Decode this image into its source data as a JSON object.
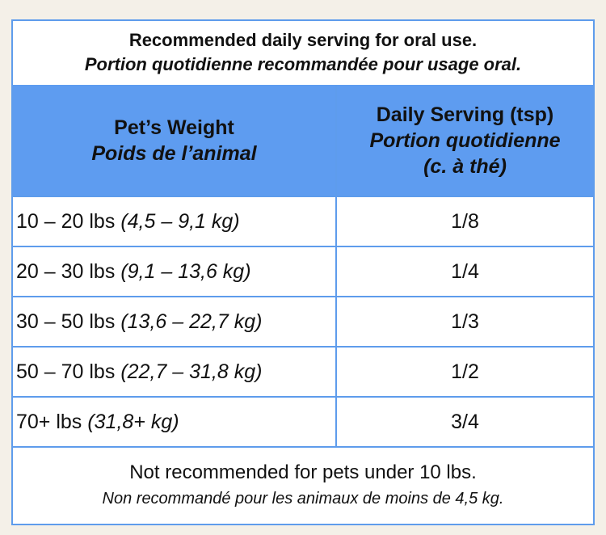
{
  "title": [
    "Recommended daily serving for oral use.",
    "Portion quotidienne recommandée pour usage oral."
  ],
  "table": {
    "columns": [
      [
        "Pet’s Weight",
        "Poids de l’animal"
      ],
      [
        "Daily Serving (tsp)",
        "Portion quotidienne",
        "(c. à thé)"
      ]
    ],
    "rows": [
      [
        {
          "lbs": "10 – 20 lbs",
          "kg": "(4,5 – 9,1 kg)"
        },
        "1/8"
      ],
      [
        {
          "lbs": "20 – 30 lbs",
          "kg": "(9,1 – 13,6 kg)"
        },
        "1/4"
      ],
      [
        {
          "lbs": "30 – 50 lbs",
          "kg": "(13,6 – 22,7 kg)"
        },
        "1/3"
      ],
      [
        {
          "lbs": "50 – 70 lbs",
          "kg": "(22,7 – 31,8 kg)"
        },
        "1/2"
      ],
      [
        {
          "lbs": "70+ lbs",
          "kg": "(31,8+ kg)"
        },
        "3/4"
      ]
    ]
  },
  "footer": [
    "Not recommended for pets under 10 lbs.",
    "Non recommandé pour les animaux de moins de 4,5 kg."
  ]
}
